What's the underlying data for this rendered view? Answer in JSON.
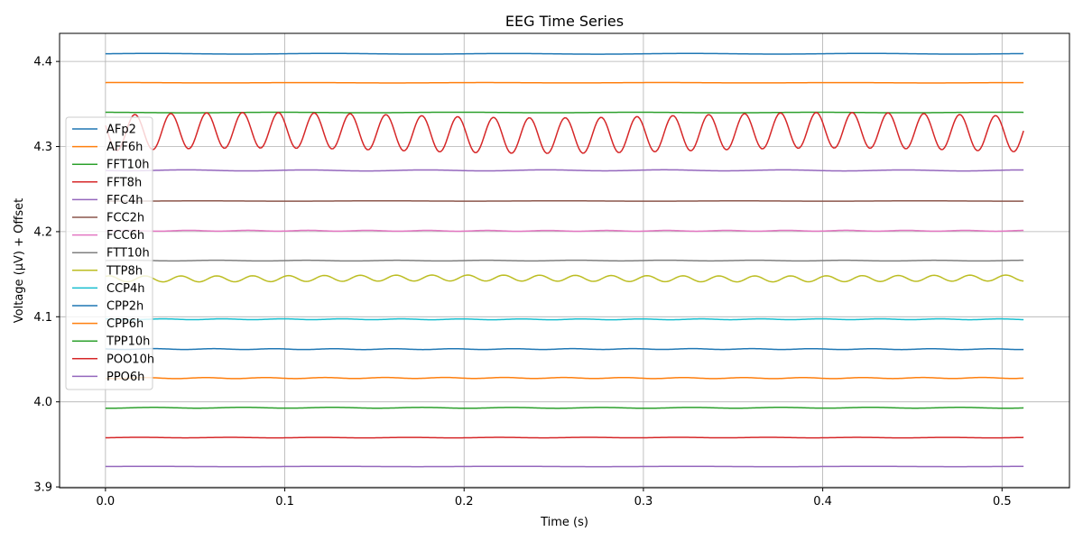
{
  "chart_data": {
    "type": "line",
    "title": "EEG Time Series",
    "xlabel": "Time (s)",
    "ylabel": "Voltage (µV) + Offset",
    "xlim": [
      -0.0256,
      0.5376
    ],
    "ylim": [
      3.899,
      4.433
    ],
    "xticks": [
      0.0,
      0.1,
      0.2,
      0.3,
      0.4,
      0.5
    ],
    "xtick_labels": [
      "0.0",
      "0.1",
      "0.2",
      "0.3",
      "0.4",
      "0.5"
    ],
    "yticks": [
      3.9,
      4.0,
      4.1,
      4.2,
      4.3,
      4.4
    ],
    "ytick_labels": [
      "3.9",
      "4.0",
      "4.1",
      "4.2",
      "4.3",
      "4.4"
    ],
    "grid": true,
    "legend_position": "center-left",
    "x_range": [
      0.0,
      0.512
    ],
    "series": [
      {
        "name": "AFp2",
        "color": "#1f77b4",
        "baseline": 4.409,
        "amplitude": 0.0004,
        "frequency_hz": 10
      },
      {
        "name": "AFF6h",
        "color": "#ff7f0e",
        "baseline": 4.375,
        "amplitude": 0.0002,
        "frequency_hz": 10
      },
      {
        "name": "FFT10h",
        "color": "#2ca02c",
        "baseline": 4.34,
        "amplitude": 0.0003,
        "frequency_hz": 10
      },
      {
        "name": "FFT8h",
        "color": "#d62728",
        "baseline": 4.316,
        "amplitude": 0.021,
        "frequency_hz": 50
      },
      {
        "name": "FFC4h",
        "color": "#9467bd",
        "baseline": 4.272,
        "amplitude": 0.0006,
        "frequency_hz": 15
      },
      {
        "name": "FCC2h",
        "color": "#8c564b",
        "baseline": 4.236,
        "amplitude": 0.0002,
        "frequency_hz": 10
      },
      {
        "name": "FCC6h",
        "color": "#e377c2",
        "baseline": 4.201,
        "amplitude": 0.0005,
        "frequency_hz": 30
      },
      {
        "name": "FTT10h",
        "color": "#7f7f7f",
        "baseline": 4.166,
        "amplitude": 0.0004,
        "frequency_hz": 20
      },
      {
        "name": "TTP8h",
        "color": "#bcbd22",
        "baseline": 4.145,
        "amplitude": 0.0035,
        "frequency_hz": 50
      },
      {
        "name": "CCP4h",
        "color": "#17becf",
        "baseline": 4.097,
        "amplitude": 0.0005,
        "frequency_hz": 30
      },
      {
        "name": "CPP2h",
        "color": "#1f77b4",
        "baseline": 4.062,
        "amplitude": 0.0005,
        "frequency_hz": 30
      },
      {
        "name": "CPP6h",
        "color": "#ff7f0e",
        "baseline": 4.028,
        "amplitude": 0.0006,
        "frequency_hz": 30
      },
      {
        "name": "TPP10h",
        "color": "#2ca02c",
        "baseline": 3.993,
        "amplitude": 0.0005,
        "frequency_hz": 20
      },
      {
        "name": "POO10h",
        "color": "#d62728",
        "baseline": 3.958,
        "amplitude": 0.0003,
        "frequency_hz": 20
      },
      {
        "name": "PPO6h",
        "color": "#9467bd",
        "baseline": 3.924,
        "amplitude": 0.0002,
        "frequency_hz": 10
      }
    ]
  }
}
